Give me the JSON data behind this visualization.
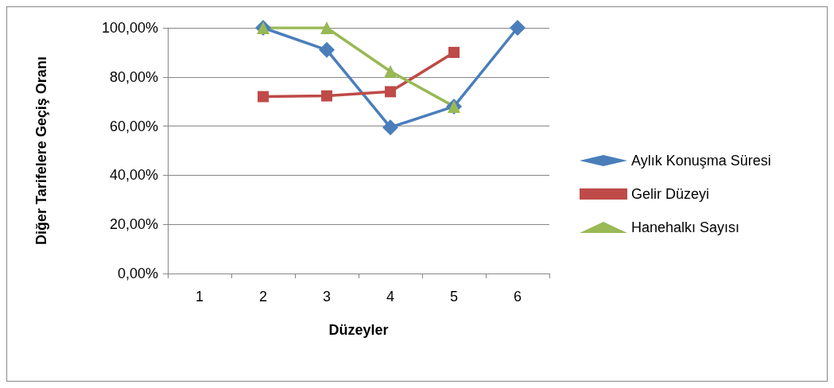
{
  "chart_data": {
    "type": "line",
    "xlabel": "Düzeyler",
    "ylabel": "Diğer Tarifelere Geçiş Oranı",
    "categories": [
      "1",
      "2",
      "3",
      "4",
      "5",
      "6"
    ],
    "series": [
      {
        "name": "Aylık Konuşma Süresi",
        "color": "#4a7ebb",
        "marker": "diamond",
        "values": [
          null,
          100,
          91,
          59.5,
          68,
          100
        ]
      },
      {
        "name": "Gelir Düzeyi",
        "color": "#be4b48",
        "marker": "square",
        "values": [
          null,
          72,
          72.3,
          74,
          90,
          null
        ]
      },
      {
        "name": "Hanehalkı Sayısı",
        "color": "#98b954",
        "marker": "triangle",
        "values": [
          null,
          100,
          100,
          82.3,
          68,
          null
        ]
      }
    ],
    "ylim": [
      0,
      100
    ],
    "yticks": [
      {
        "value": 0,
        "label": "0,00%"
      },
      {
        "value": 20,
        "label": "20,00%"
      },
      {
        "value": 40,
        "label": "40,00%"
      },
      {
        "value": 60,
        "label": "60,00%"
      },
      {
        "value": 80,
        "label": "80,00%"
      },
      {
        "value": 100,
        "label": "100,00%"
      }
    ],
    "grid": "y",
    "legend": "right",
    "line_style": "solid"
  }
}
